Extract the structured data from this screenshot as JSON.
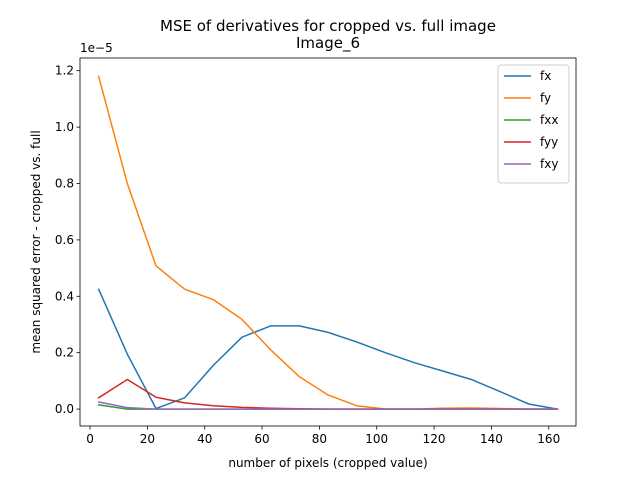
{
  "chart_data": {
    "type": "line",
    "title": "MSE of derivatives for cropped vs. full image",
    "subtitle": "Image_6",
    "xlabel": "number of pixels (cropped value)",
    "ylabel": "mean squared error - cropped vs. full",
    "offset_label": "1e−5",
    "xlim": [
      -3.5,
      169.5
    ],
    "ylim": [
      -0.06,
      1.245
    ],
    "xticks": [
      0,
      20,
      40,
      60,
      80,
      100,
      120,
      140,
      160
    ],
    "xtick_labels": [
      "0",
      "20",
      "40",
      "60",
      "80",
      "100",
      "120",
      "140",
      "160"
    ],
    "yticks": [
      0.0,
      0.2,
      0.4,
      0.6,
      0.8,
      1.0,
      1.2
    ],
    "ytick_labels": [
      "0.0",
      "0.2",
      "0.4",
      "0.6",
      "0.8",
      "1.0",
      "1.2"
    ],
    "grid": false,
    "legend_position": "top-right",
    "x": [
      3,
      13,
      23,
      33,
      43,
      53,
      63,
      73,
      83,
      93,
      103,
      113,
      123,
      133,
      143,
      153,
      163
    ],
    "series": [
      {
        "name": "fx",
        "color": "#1f77b4",
        "values": [
          0.425,
          0.195,
          0.002,
          0.04,
          0.155,
          0.255,
          0.295,
          0.295,
          0.272,
          0.238,
          0.2,
          0.165,
          0.135,
          0.105,
          0.062,
          0.018,
          0.0
        ]
      },
      {
        "name": "fy",
        "color": "#ff7f0e",
        "values": [
          1.18,
          0.8,
          0.508,
          0.425,
          0.388,
          0.318,
          0.21,
          0.115,
          0.05,
          0.012,
          0.0,
          0.0,
          0.003,
          0.004,
          0.002,
          0.0,
          0.0
        ]
      },
      {
        "name": "fxx",
        "color": "#2ca02c",
        "values": [
          0.015,
          0.0,
          0.0,
          0.0,
          0.0,
          0.0,
          0.0,
          0.0,
          0.0,
          0.0,
          0.0,
          0.0,
          0.0,
          0.0,
          0.0,
          0.0,
          0.0
        ]
      },
      {
        "name": "fyy",
        "color": "#d62728",
        "values": [
          0.04,
          0.105,
          0.042,
          0.022,
          0.012,
          0.006,
          0.003,
          0.001,
          0.0,
          0.0,
          0.0,
          0.0,
          0.0,
          0.0,
          0.0,
          0.0,
          0.0
        ]
      },
      {
        "name": "fxy",
        "color": "#9467bd",
        "values": [
          0.025,
          0.005,
          0.0,
          0.0,
          0.0,
          0.0,
          0.0,
          0.0,
          0.0,
          0.0,
          0.0,
          0.0,
          0.0,
          0.0,
          0.0,
          0.0,
          0.0
        ]
      }
    ]
  }
}
